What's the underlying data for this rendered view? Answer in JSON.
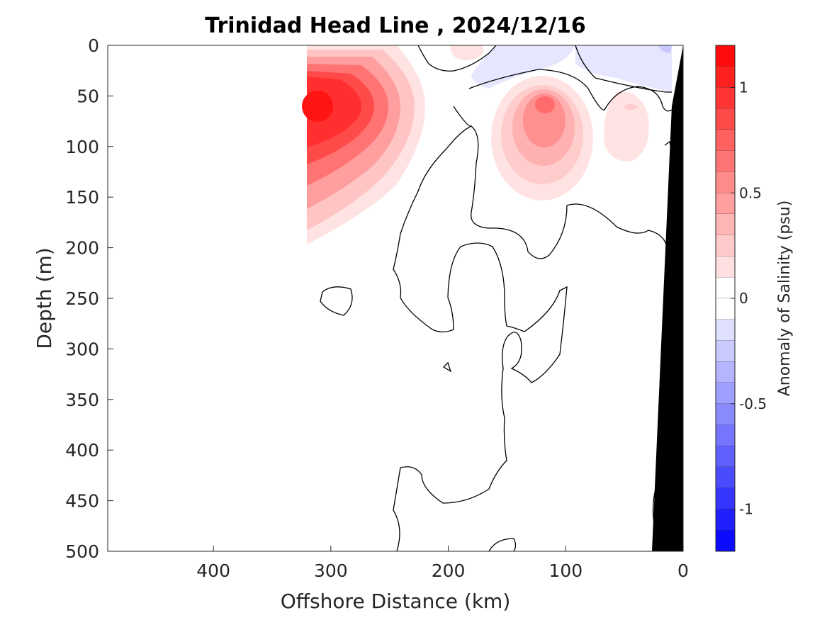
{
  "chart_data": {
    "type": "heatmap",
    "title": "Trinidad Head Line , 2024/12/16",
    "xlabel": "Offshore Distance (km)",
    "ylabel": "Depth (m)",
    "xlim": [
      490,
      0
    ],
    "ylim": [
      0,
      500
    ],
    "x_direction": "reversed",
    "y_direction": "depth increases downward",
    "x_ticks": [
      400,
      300,
      200,
      100,
      0
    ],
    "y_ticks": [
      0,
      50,
      100,
      150,
      200,
      250,
      300,
      350,
      400,
      450,
      500
    ],
    "colorbar": {
      "label": "Anomaly of Salinity (psu)",
      "clim": [
        -1.2,
        1.2
      ],
      "levels_step": 0.1,
      "ticks": [
        1,
        0.5,
        0,
        -0.5,
        -1
      ],
      "high_color": "#ff0000",
      "mid_color": "#ffffff",
      "low_color": "#0000ff"
    },
    "bathymetry_color": "#000000",
    "features": [
      {
        "kind": "positive anomaly core",
        "x_km": 310,
        "depth_m": 55,
        "value_psu": 1.0
      },
      {
        "kind": "positive anomaly core",
        "x_km": 120,
        "depth_m": 60,
        "value_psu": 0.5
      },
      {
        "kind": "weak positive anomaly",
        "x_km": 45,
        "depth_m": 75,
        "value_psu": 0.15
      },
      {
        "kind": "weak positive anomaly",
        "x_km": 190,
        "depth_m": 5,
        "value_psu": 0.1
      },
      {
        "kind": "weak negative anomaly",
        "x_km": 60,
        "depth_m": 15,
        "value_psu": -0.1
      },
      {
        "kind": "weak negative anomaly",
        "x_km": 155,
        "depth_m": 25,
        "value_psu": -0.1
      }
    ]
  }
}
